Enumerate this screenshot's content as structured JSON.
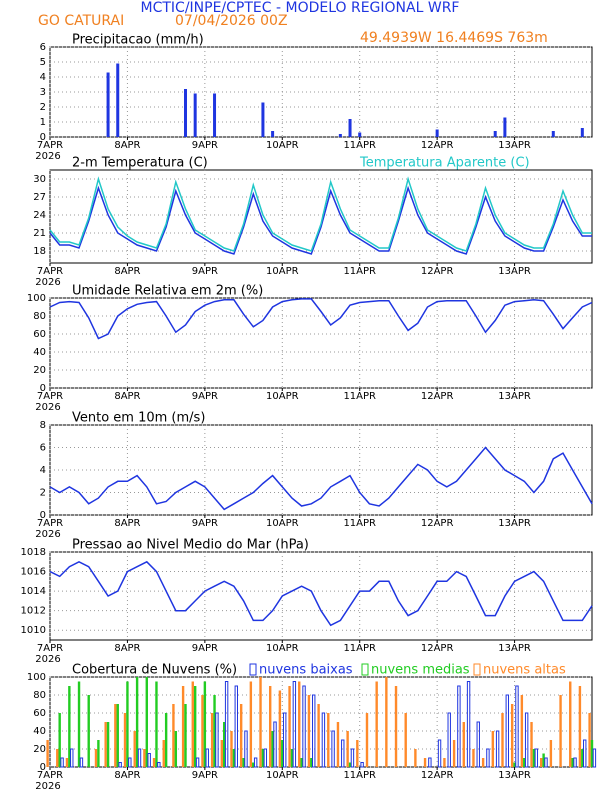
{
  "header": {
    "title": "MCTIC/INPE/CPTEC - MODELO REGIONAL WRF",
    "location": "GO CATURAI",
    "run": "07/04/2026 00Z",
    "coords": "49.4939W 16.4469S 763m"
  },
  "chart_data": [
    {
      "type": "bar",
      "title": "Precipitacao (mm/h)",
      "year": "2026",
      "x": [
        0,
        3,
        6,
        9,
        12,
        15,
        18,
        21,
        24,
        27,
        30,
        33,
        36,
        39,
        42,
        45,
        48,
        51,
        54,
        57,
        60,
        63,
        66,
        69,
        72,
        75,
        78,
        81,
        84,
        87,
        90,
        93,
        96,
        99,
        102,
        105,
        108,
        111,
        114,
        117,
        120,
        123,
        126,
        129,
        132,
        135,
        138,
        141,
        144,
        147,
        150,
        153,
        156,
        159,
        162,
        165,
        168
      ],
      "xlim": [
        0,
        168
      ],
      "xticks": [
        {
          "value": 0,
          "label": "7APR"
        },
        {
          "value": 24,
          "label": "8APR"
        },
        {
          "value": 48,
          "label": "9APR"
        },
        {
          "value": 72,
          "label": "10APR"
        },
        {
          "value": 96,
          "label": "11APR"
        },
        {
          "value": 120,
          "label": "12APR"
        },
        {
          "value": 144,
          "label": "13APR"
        }
      ],
      "ylim": [
        0,
        6
      ],
      "yticks": [
        0,
        1,
        2,
        3,
        4,
        5,
        6
      ],
      "grid": true,
      "series": [
        {
          "color": "#1f35e0",
          "values": [
            0,
            0,
            0,
            0,
            0,
            0,
            4.3,
            4.9,
            0,
            0,
            0,
            0,
            0,
            0,
            3.2,
            2.9,
            0,
            2.9,
            0,
            0,
            0,
            0,
            2.3,
            0.4,
            0,
            0,
            0,
            0,
            0,
            0,
            0.2,
            1.2,
            0.3,
            0,
            0,
            0,
            0,
            0,
            0,
            0,
            0.5,
            0,
            0,
            0,
            0,
            0,
            0.4,
            1.3,
            0,
            0,
            0,
            0,
            0.4,
            0,
            0,
            0.6,
            0
          ]
        }
      ]
    },
    {
      "type": "line",
      "title": "2-m Temperatura (C)",
      "year": "2026",
      "x": [
        0,
        3,
        6,
        9,
        12,
        15,
        18,
        21,
        24,
        27,
        30,
        33,
        36,
        39,
        42,
        45,
        48,
        51,
        54,
        57,
        60,
        63,
        66,
        69,
        72,
        75,
        78,
        81,
        84,
        87,
        90,
        93,
        96,
        99,
        102,
        105,
        108,
        111,
        114,
        117,
        120,
        123,
        126,
        129,
        132,
        135,
        138,
        141,
        144,
        147,
        150,
        153,
        156,
        159,
        162,
        165,
        168
      ],
      "xlim": [
        0,
        168
      ],
      "xticks": [
        {
          "value": 0,
          "label": "7APR"
        },
        {
          "value": 24,
          "label": "8APR"
        },
        {
          "value": 48,
          "label": "9APR"
        },
        {
          "value": 72,
          "label": "10APR"
        },
        {
          "value": 96,
          "label": "11APR"
        },
        {
          "value": 120,
          "label": "12APR"
        },
        {
          "value": 144,
          "label": "13APR"
        }
      ],
      "ylim": [
        16,
        31.5
      ],
      "yticks": [
        18,
        21,
        24,
        27,
        30
      ],
      "grid": true,
      "series": [
        {
          "color": "#1f35e0",
          "values": [
            21,
            19,
            19,
            18.5,
            23,
            28.5,
            24,
            21,
            20,
            19,
            18.5,
            18,
            22,
            28,
            24,
            21,
            20,
            19,
            18,
            17.5,
            22,
            27.5,
            23,
            20.5,
            19.5,
            18.5,
            18,
            17.5,
            22,
            28,
            24,
            21,
            20,
            19,
            18,
            18,
            23,
            28.5,
            24,
            21,
            20,
            19,
            18,
            17.5,
            22,
            27,
            23,
            20.5,
            19.5,
            18.5,
            18,
            18,
            22,
            26.5,
            23,
            20.5,
            20.5
          ]
        },
        {
          "name": "Temperatura Aparente (C)",
          "color": "#22c8c8",
          "values": [
            21.5,
            19.5,
            19.5,
            19,
            23.5,
            30,
            25,
            22,
            20.5,
            19.5,
            19,
            18.5,
            22.5,
            29.5,
            25,
            21.5,
            20.5,
            19.5,
            18.5,
            18,
            22.5,
            29,
            24,
            21,
            20,
            19,
            18.5,
            18,
            22.5,
            29.5,
            25,
            21.5,
            20.5,
            19.5,
            18.5,
            18.5,
            23.5,
            30,
            25,
            21.5,
            20.5,
            19.5,
            18.5,
            18,
            22.5,
            28.5,
            24,
            21,
            20,
            19,
            18.5,
            18.5,
            22.5,
            28,
            24,
            21,
            21
          ]
        }
      ]
    },
    {
      "type": "line",
      "title": "Umidade Relativa em 2m (%)",
      "year": "2026",
      "x": [
        0,
        3,
        6,
        9,
        12,
        15,
        18,
        21,
        24,
        27,
        30,
        33,
        36,
        39,
        42,
        45,
        48,
        51,
        54,
        57,
        60,
        63,
        66,
        69,
        72,
        75,
        78,
        81,
        84,
        87,
        90,
        93,
        96,
        99,
        102,
        105,
        108,
        111,
        114,
        117,
        120,
        123,
        126,
        129,
        132,
        135,
        138,
        141,
        144,
        147,
        150,
        153,
        156,
        159,
        162,
        165,
        168
      ],
      "xlim": [
        0,
        168
      ],
      "xticks": [
        {
          "value": 0,
          "label": "7APR"
        },
        {
          "value": 24,
          "label": "8APR"
        },
        {
          "value": 48,
          "label": "9APR"
        },
        {
          "value": 72,
          "label": "10APR"
        },
        {
          "value": 96,
          "label": "11APR"
        },
        {
          "value": 120,
          "label": "12APR"
        },
        {
          "value": 144,
          "label": "13APR"
        }
      ],
      "ylim": [
        0,
        100
      ],
      "yticks": [
        0,
        20,
        40,
        60,
        80,
        100
      ],
      "grid": true,
      "series": [
        {
          "color": "#1f35e0",
          "values": [
            90,
            95,
            96,
            95,
            78,
            55,
            60,
            80,
            88,
            93,
            95,
            96,
            80,
            62,
            70,
            85,
            92,
            96,
            98,
            98,
            82,
            68,
            75,
            90,
            96,
            98,
            99,
            99,
            85,
            70,
            78,
            92,
            95,
            96,
            97,
            97,
            80,
            64,
            72,
            90,
            96,
            97,
            97,
            97,
            80,
            62,
            75,
            92,
            96,
            97,
            98,
            97,
            82,
            66,
            78,
            90,
            95
          ]
        }
      ]
    },
    {
      "type": "line",
      "title": "Vento em 10m (m/s)",
      "year": "2026",
      "x": [
        0,
        3,
        6,
        9,
        12,
        15,
        18,
        21,
        24,
        27,
        30,
        33,
        36,
        39,
        42,
        45,
        48,
        51,
        54,
        57,
        60,
        63,
        66,
        69,
        72,
        75,
        78,
        81,
        84,
        87,
        90,
        93,
        96,
        99,
        102,
        105,
        108,
        111,
        114,
        117,
        120,
        123,
        126,
        129,
        132,
        135,
        138,
        141,
        144,
        147,
        150,
        153,
        156,
        159,
        162,
        165,
        168
      ],
      "xlim": [
        0,
        168
      ],
      "xticks": [
        {
          "value": 0,
          "label": "7APR"
        },
        {
          "value": 24,
          "label": "8APR"
        },
        {
          "value": 48,
          "label": "9APR"
        },
        {
          "value": 72,
          "label": "10APR"
        },
        {
          "value": 96,
          "label": "11APR"
        },
        {
          "value": 120,
          "label": "12APR"
        },
        {
          "value": 144,
          "label": "13APR"
        }
      ],
      "ylim": [
        0,
        8
      ],
      "yticks": [
        0,
        2,
        4,
        6,
        8
      ],
      "grid": true,
      "series": [
        {
          "color": "#1f35e0",
          "values": [
            2.5,
            2,
            2.5,
            2,
            1,
            1.5,
            2.5,
            3,
            3,
            3.5,
            2.5,
            1,
            1.2,
            2,
            2.5,
            3,
            2.5,
            1.5,
            0.5,
            1,
            1.5,
            2,
            2.8,
            3.5,
            2.5,
            1.5,
            0.8,
            1,
            1.5,
            2.5,
            3,
            3.5,
            2,
            1,
            0.8,
            1.5,
            2.5,
            3.5,
            4.5,
            4,
            3,
            2.5,
            3,
            4,
            5,
            6,
            5,
            4,
            3.5,
            3,
            2,
            3,
            5,
            5.5,
            4,
            2.5,
            1
          ]
        }
      ]
    },
    {
      "type": "line",
      "title": "Pressao ao Nivel Medio do Mar (hPa)",
      "year": "2026",
      "x": [
        0,
        3,
        6,
        9,
        12,
        15,
        18,
        21,
        24,
        27,
        30,
        33,
        36,
        39,
        42,
        45,
        48,
        51,
        54,
        57,
        60,
        63,
        66,
        69,
        72,
        75,
        78,
        81,
        84,
        87,
        90,
        93,
        96,
        99,
        102,
        105,
        108,
        111,
        114,
        117,
        120,
        123,
        126,
        129,
        132,
        135,
        138,
        141,
        144,
        147,
        150,
        153,
        156,
        159,
        162,
        165,
        168
      ],
      "xlim": [
        0,
        168
      ],
      "xticks": [
        {
          "value": 0,
          "label": "7APR"
        },
        {
          "value": 24,
          "label": "8APR"
        },
        {
          "value": 48,
          "label": "9APR"
        },
        {
          "value": 72,
          "label": "10APR"
        },
        {
          "value": 96,
          "label": "11APR"
        },
        {
          "value": 120,
          "label": "12APR"
        },
        {
          "value": 144,
          "label": "13APR"
        }
      ],
      "ylim": [
        1009,
        1018
      ],
      "yticks": [
        1010,
        1012,
        1014,
        1016,
        1018
      ],
      "grid": true,
      "series": [
        {
          "color": "#1f35e0",
          "values": [
            1016,
            1015.5,
            1016.5,
            1017,
            1016.5,
            1015,
            1013.5,
            1014,
            1016,
            1016.5,
            1017,
            1016,
            1014,
            1012,
            1012,
            1013,
            1014,
            1014.5,
            1015,
            1014.5,
            1013,
            1011,
            1011,
            1012,
            1013.5,
            1014,
            1014.5,
            1014,
            1012,
            1010.5,
            1011,
            1012.5,
            1014,
            1014,
            1015,
            1015,
            1013,
            1011.5,
            1012,
            1013.5,
            1015,
            1015,
            1016,
            1015.5,
            1013.5,
            1011.5,
            1011.5,
            1013.5,
            1015,
            1015.5,
            1016,
            1015,
            1013,
            1011,
            1011,
            1011,
            1012.5
          ]
        }
      ]
    },
    {
      "type": "bar",
      "title": "Cobertura de Nuvens (%)",
      "year": "2026",
      "x": [
        0,
        3,
        6,
        9,
        12,
        15,
        18,
        21,
        24,
        27,
        30,
        33,
        36,
        39,
        42,
        45,
        48,
        51,
        54,
        57,
        60,
        63,
        66,
        69,
        72,
        75,
        78,
        81,
        84,
        87,
        90,
        93,
        96,
        99,
        102,
        105,
        108,
        111,
        114,
        117,
        120,
        123,
        126,
        129,
        132,
        135,
        138,
        141,
        144,
        147,
        150,
        153,
        156,
        159,
        162,
        165,
        168
      ],
      "xlim": [
        0,
        168
      ],
      "xticks": [
        {
          "value": 0,
          "label": "7APR"
        },
        {
          "value": 24,
          "label": "8APR"
        },
        {
          "value": 48,
          "label": "9APR"
        },
        {
          "value": 72,
          "label": "10APR"
        },
        {
          "value": 96,
          "label": "11APR"
        },
        {
          "value": 120,
          "label": "12APR"
        },
        {
          "value": 144,
          "label": "13APR"
        }
      ],
      "ylim": [
        0,
        100
      ],
      "yticks": [
        0,
        20,
        40,
        60,
        80,
        100
      ],
      "grid": true,
      "series": [
        {
          "name": "nuvens altas",
          "color": "#ff8a2a",
          "values": [
            30,
            20,
            10,
            0,
            0,
            20,
            50,
            70,
            60,
            40,
            20,
            10,
            30,
            70,
            90,
            95,
            80,
            60,
            30,
            40,
            70,
            95,
            100,
            90,
            85,
            90,
            95,
            80,
            70,
            60,
            50,
            40,
            30,
            60,
            95,
            100,
            90,
            60,
            20,
            10,
            0,
            10,
            30,
            50,
            20,
            10,
            40,
            60,
            70,
            80,
            50,
            10,
            30,
            80,
            95,
            90,
            60
          ]
        },
        {
          "name": "nuvens medias",
          "color": "#22cc22",
          "values": [
            0,
            60,
            90,
            95,
            80,
            30,
            50,
            70,
            95,
            100,
            100,
            95,
            60,
            40,
            70,
            90,
            95,
            80,
            50,
            20,
            10,
            5,
            20,
            40,
            30,
            20,
            10,
            10,
            0,
            0,
            0,
            5,
            0,
            0,
            0,
            0,
            0,
            0,
            0,
            0,
            0,
            0,
            0,
            0,
            0,
            0,
            0,
            0,
            5,
            10,
            20,
            15,
            0,
            0,
            10,
            20,
            30
          ]
        },
        {
          "name": "nuvens baixas",
          "color": "#1f35e0",
          "values": [
            0,
            10,
            20,
            10,
            0,
            0,
            0,
            5,
            10,
            20,
            15,
            5,
            0,
            0,
            0,
            10,
            20,
            60,
            95,
            90,
            40,
            10,
            20,
            50,
            60,
            95,
            90,
            80,
            60,
            40,
            30,
            20,
            5,
            0,
            0,
            0,
            0,
            0,
            0,
            10,
            30,
            60,
            90,
            95,
            50,
            20,
            40,
            80,
            90,
            60,
            20,
            10,
            0,
            0,
            10,
            30,
            20
          ]
        }
      ]
    }
  ]
}
